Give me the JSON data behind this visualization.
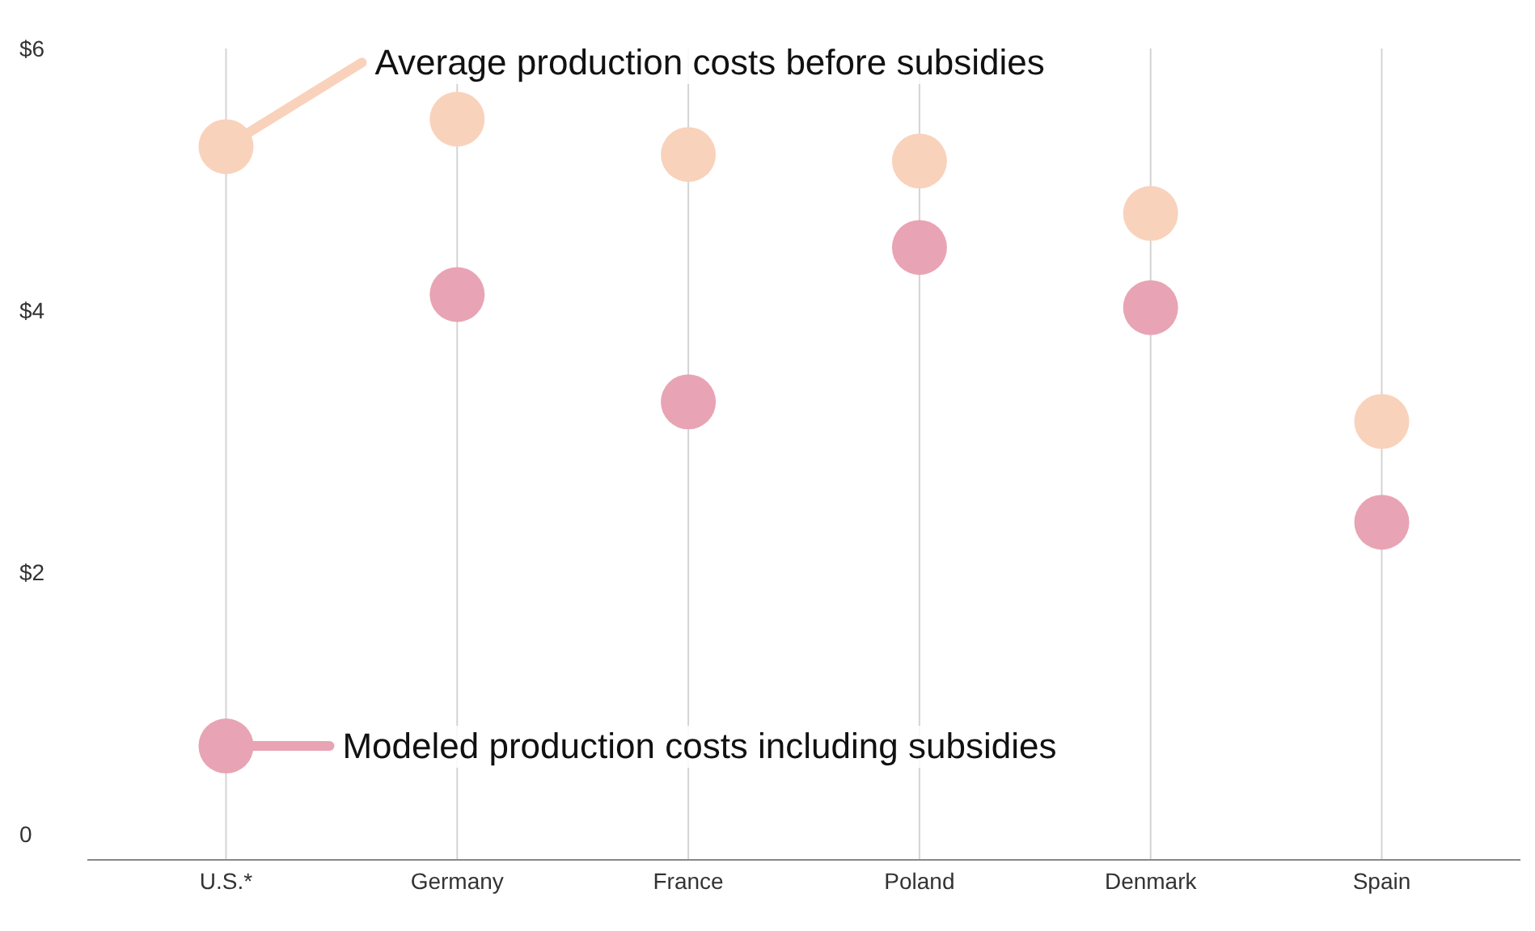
{
  "chart_data": {
    "type": "scatter",
    "categories": [
      "U.S.*",
      "Germany",
      "France",
      "Poland",
      "Denmark",
      "Spain"
    ],
    "series": [
      {
        "name": "Average production costs before subsidies",
        "color": "#f9d2bc",
        "values": [
          5.25,
          5.46,
          5.19,
          5.14,
          4.74,
          3.15
        ]
      },
      {
        "name": "Modeled production costs including subsidies",
        "color": "#e8a4b4",
        "values": [
          0.67,
          4.12,
          3.3,
          4.48,
          4.02,
          2.38
        ]
      }
    ],
    "ylim": [
      -0.2,
      6
    ],
    "yticks": [
      0,
      {
        "value": 2,
        "label": "$2"
      },
      {
        "value": 4,
        "label": "$4"
      },
      {
        "value": 6,
        "label": "$6"
      }
    ],
    "grid": "x",
    "legend": "left",
    "marker": "circle"
  }
}
